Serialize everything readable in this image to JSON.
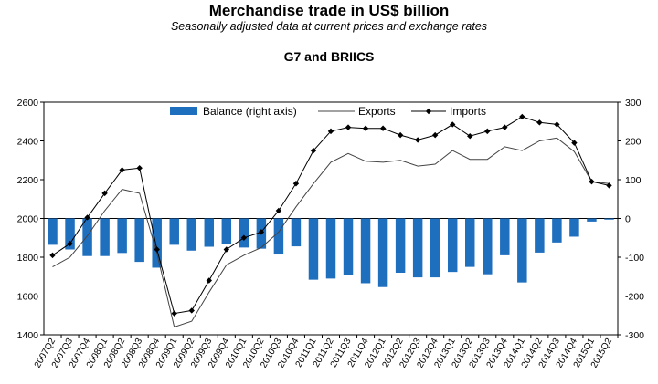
{
  "chart_data": {
    "type": "bar+line",
    "title": "Merchandise trade in US$ billion",
    "subtitle": "Seasonally adjusted data at current prices and exchange rates",
    "group_label": "G7 and BRIICS",
    "categories": [
      "2007Q2",
      "2007Q3",
      "2007Q4",
      "2008Q1",
      "2008Q2",
      "2008Q3",
      "2008Q4",
      "2009Q1",
      "2009Q2",
      "2009Q3",
      "2009Q4",
      "2010Q1",
      "2010Q2",
      "2010Q3",
      "2010Q4",
      "2011Q1",
      "2011Q2",
      "2011Q3",
      "2011Q4",
      "2012Q1",
      "2012Q2",
      "2012Q3",
      "2012Q4",
      "2013Q1",
      "2013Q2",
      "2013Q3",
      "2013Q4",
      "2014Q1",
      "2014Q2",
      "2014Q3",
      "2014Q4",
      "2015Q1",
      "2015Q2"
    ],
    "left_axis": {
      "min": 1400,
      "max": 2600,
      "ticks": [
        1400,
        1600,
        1800,
        2000,
        2200,
        2400,
        2600
      ]
    },
    "right_axis": {
      "min": -300,
      "max": 300,
      "ticks": [
        -300,
        -200,
        -100,
        0,
        100,
        200,
        300
      ]
    },
    "series": [
      {
        "name": "Balance (right axis)",
        "type": "bar",
        "axis": "right",
        "color": "#1f6fbf",
        "values": [
          -68,
          -80,
          -97,
          -97,
          -89,
          -112,
          -127,
          -68,
          -83,
          -73,
          -65,
          -75,
          -78,
          -93,
          -72,
          -158,
          -155,
          -147,
          -167,
          -177,
          -140,
          -152,
          -152,
          -138,
          -125,
          -144,
          -95,
          -165,
          -88,
          -62,
          -47,
          -8,
          -3
        ]
      },
      {
        "name": "Exports",
        "type": "line",
        "axis": "left",
        "color": "#444444",
        "values": [
          1750,
          1800,
          1910,
          2040,
          2150,
          2130,
          1820,
          1440,
          1470,
          1620,
          1760,
          1810,
          1850,
          1930,
          2060,
          2180,
          2290,
          2335,
          2295,
          2290,
          2300,
          2270,
          2280,
          2350,
          2305,
          2305,
          2370,
          2350,
          2400,
          2415,
          2345,
          2190,
          2180
        ]
      },
      {
        "name": "Imports",
        "type": "line",
        "axis": "left",
        "color": "#000000",
        "values": [
          1810,
          1870,
          2005,
          2130,
          2250,
          2260,
          1840,
          1510,
          1525,
          1680,
          1840,
          1900,
          1930,
          2040,
          2180,
          2350,
          2450,
          2470,
          2465,
          2465,
          2430,
          2405,
          2430,
          2485,
          2425,
          2450,
          2470,
          2525,
          2495,
          2485,
          2390,
          2190,
          2170
        ]
      }
    ],
    "legend": {
      "position": "top",
      "entries": [
        "Balance (right axis)",
        "Exports",
        "Imports"
      ]
    }
  }
}
